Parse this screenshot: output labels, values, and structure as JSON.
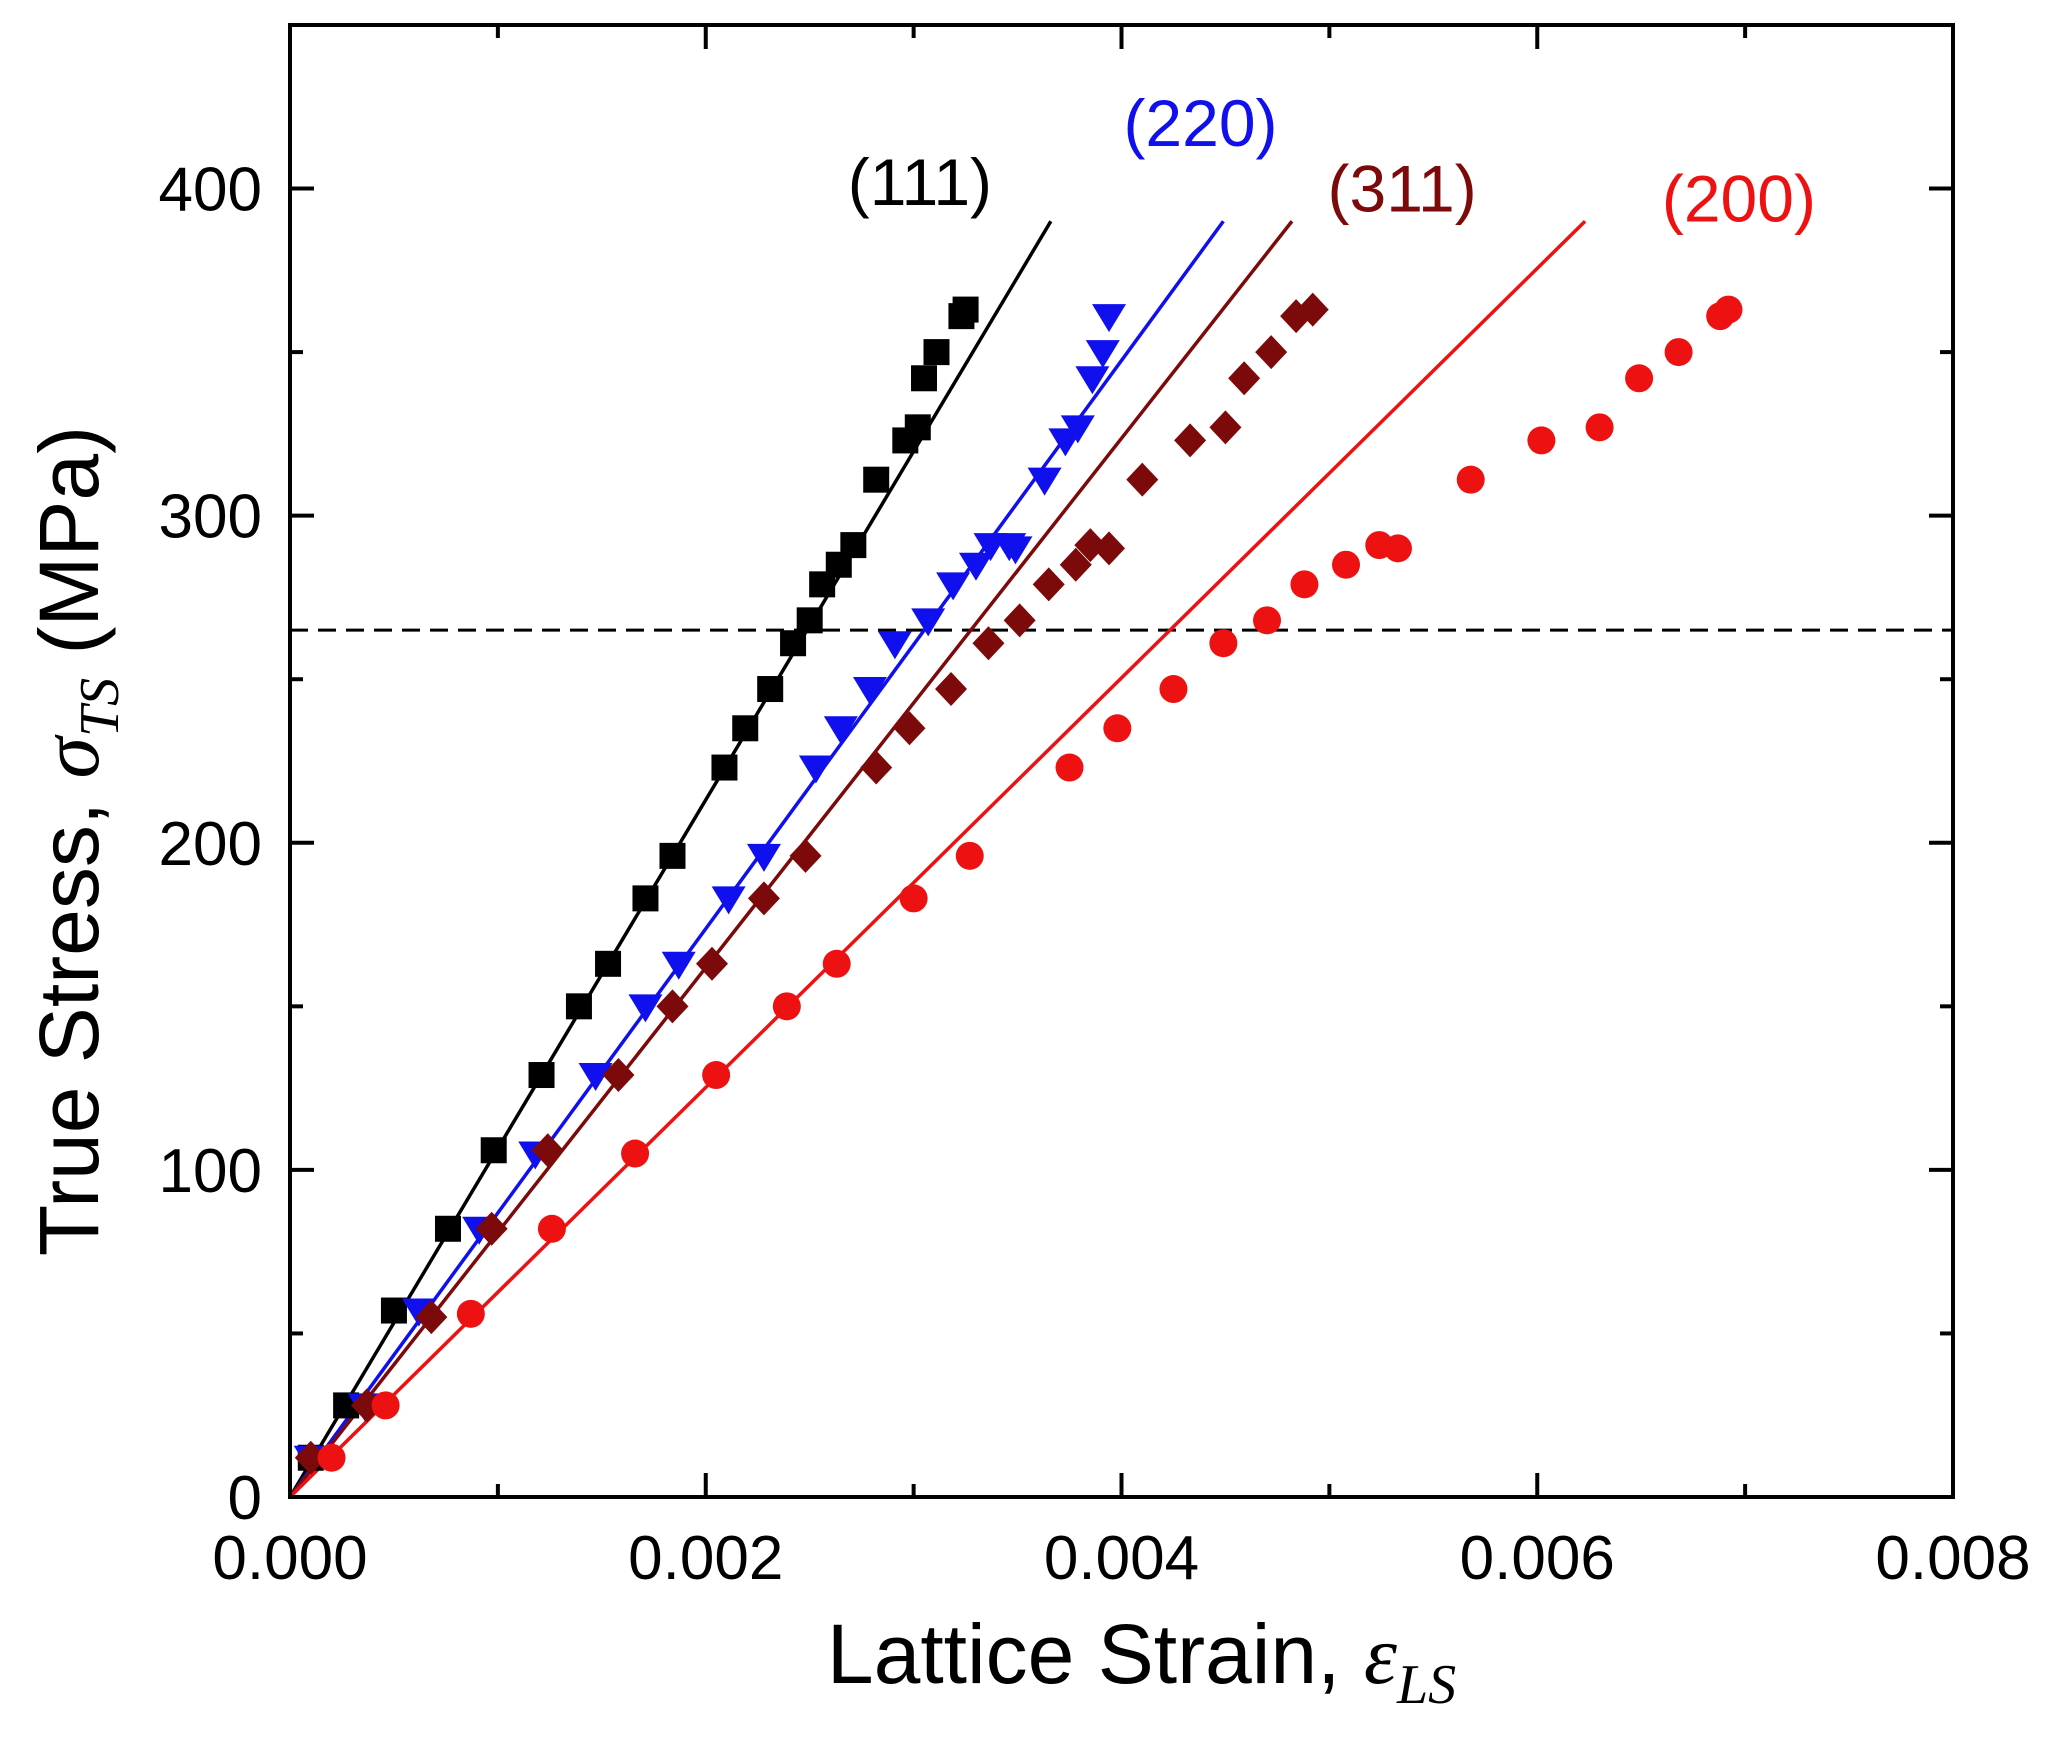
{
  "chart_data": {
    "type": "scatter",
    "title": "",
    "xlabel": "Lattice Strain, ",
    "xlabel_symbol": "ε",
    "xlabel_subscript": "LS",
    "ylabel": "True Stress, ",
    "ylabel_symbol": "σ",
    "ylabel_subscript": "TS",
    "ylabel_units": " (MPa)",
    "xlim": [
      0,
      0.008
    ],
    "ylim": [
      0,
      450
    ],
    "xticks": [
      0,
      0.002,
      0.004,
      0.006,
      0.008
    ],
    "xtick_labels": [
      "0.000",
      "0.002",
      "0.004",
      "0.006",
      "0.008"
    ],
    "yticks": [
      0,
      100,
      200,
      300,
      400
    ],
    "ytick_labels": [
      "0",
      "100",
      "200",
      "300",
      "400"
    ],
    "y_minor_ticks": [
      50,
      150,
      250,
      350
    ],
    "x_minor_ticks": [
      0.001,
      0.003,
      0.005,
      0.007
    ],
    "reference_line": {
      "type": "horizontal-dashed",
      "y": 265
    },
    "series": [
      {
        "name": "(111)",
        "color": "#000000",
        "marker": "square",
        "fit_line": {
          "x": [
            0,
            0.00366
          ],
          "y": [
            0,
            390
          ]
        },
        "x": [
          0.0001,
          0.00027,
          0.0005,
          0.00076,
          0.00098,
          0.00121,
          0.00139,
          0.00153,
          0.00171,
          0.00184,
          0.00209,
          0.00219,
          0.00231,
          0.00242,
          0.0025,
          0.00256,
          0.00264,
          0.00271,
          0.00282,
          0.00296,
          0.00302,
          0.00305,
          0.00311,
          0.00323,
          0.00325
        ],
        "y": [
          12,
          28,
          57,
          82,
          106,
          129,
          150,
          163,
          183,
          196,
          223,
          235,
          247,
          261,
          268,
          279,
          285,
          291,
          311,
          323,
          327,
          342,
          350,
          361,
          363
        ]
      },
      {
        "name": "(220)",
        "color": "#1010ee",
        "marker": "triangle-down",
        "fit_line": {
          "x": [
            0,
            0.00449
          ],
          "y": [
            0,
            390
          ]
        },
        "x": [
          0.0001,
          0.00036,
          0.00062,
          0.00091,
          0.00118,
          0.00147,
          0.00171,
          0.00187,
          0.00211,
          0.00228,
          0.00253,
          0.00265,
          0.00279,
          0.00291,
          0.00307,
          0.00319,
          0.0033,
          0.00337,
          0.00346,
          0.00349,
          0.00363,
          0.00373,
          0.00379,
          0.00386,
          0.00391,
          0.00394
        ],
        "y": [
          12,
          28,
          57,
          82,
          105,
          129,
          150,
          163,
          183,
          196,
          223,
          235,
          247,
          261,
          268,
          279,
          285,
          291,
          291,
          290,
          311,
          323,
          327,
          342,
          350,
          361
        ]
      },
      {
        "name": "(311)",
        "color": "#7d0a0a",
        "marker": "diamond",
        "fit_line": {
          "x": [
            0,
            0.00482
          ],
          "y": [
            0,
            390
          ]
        },
        "x": [
          0.0001,
          0.00037,
          0.00068,
          0.00097,
          0.00124,
          0.00158,
          0.00184,
          0.00203,
          0.00228,
          0.00248,
          0.00282,
          0.00298,
          0.00318,
          0.00336,
          0.00351,
          0.00365,
          0.00378,
          0.00385,
          0.00394,
          0.0041,
          0.00433,
          0.0045,
          0.00459,
          0.00472,
          0.00484,
          0.00492
        ],
        "y": [
          12,
          28,
          55,
          82,
          106,
          129,
          150,
          163,
          183,
          196,
          223,
          235,
          247,
          261,
          268,
          279,
          285,
          291,
          290,
          311,
          323,
          327,
          342,
          350,
          361,
          363
        ]
      },
      {
        "name": "(200)",
        "color": "#ee1111",
        "marker": "circle",
        "fit_line": {
          "x": [
            0,
            0.00623
          ],
          "y": [
            0,
            390
          ]
        },
        "x": [
          0.0002,
          0.00046,
          0.00087,
          0.00126,
          0.00166,
          0.00205,
          0.00239,
          0.00263,
          0.003,
          0.00327,
          0.00375,
          0.00398,
          0.00425,
          0.00449,
          0.0047,
          0.00488,
          0.00508,
          0.00524,
          0.00533,
          0.00568,
          0.00602,
          0.0063,
          0.00649,
          0.00668,
          0.00688,
          0.00692
        ],
        "y": [
          12,
          28,
          56,
          82,
          105,
          129,
          150,
          163,
          183,
          196,
          223,
          235,
          247,
          261,
          268,
          279,
          285,
          291,
          290,
          311,
          323,
          327,
          342,
          350,
          361,
          363
        ]
      }
    ]
  }
}
